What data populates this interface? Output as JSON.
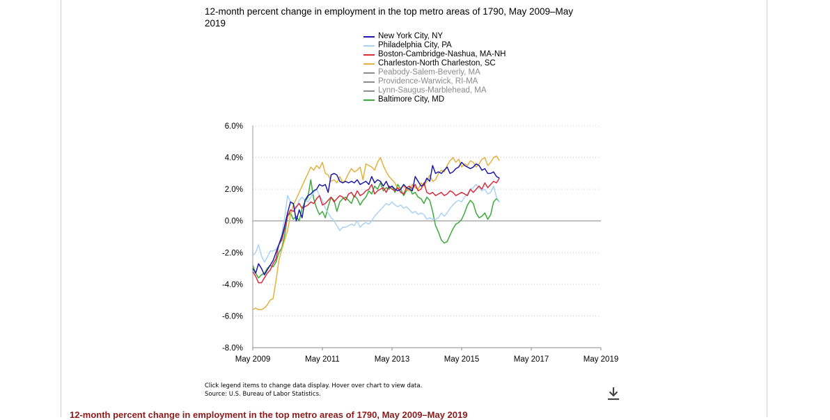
{
  "chart_data": {
    "type": "line",
    "title": "12-month percent change in employment in the top metro areas of 1790, May 2009–May 2019",
    "x_ticks": [
      "May 2009",
      "May 2011",
      "May 2013",
      "May 2015",
      "May 2017",
      "May 2019"
    ],
    "x_range": [
      "2009-05",
      "2019-05"
    ],
    "y_ticks": [
      "6.0%",
      "4.0%",
      "2.0%",
      "0.0%",
      "-2.0%",
      "-4.0%",
      "-6.0%",
      "-8.0%"
    ],
    "ylim": [
      -8,
      6
    ],
    "y_unit": "%",
    "grid": "horizontal dotted",
    "legend_position": "top",
    "series": [
      {
        "name": "New York City, NY",
        "color": "#1a1aa6",
        "start": "2009-05",
        "values": [
          -3.0,
          -3.3,
          -2.7,
          -3.0,
          -3.4,
          -3.1,
          -2.8,
          -2.5,
          -2.0,
          -1.5,
          -1.0,
          -0.3,
          0.5,
          1.2,
          1.1,
          0.0,
          0.7,
          0.2,
          1.3,
          1.6,
          1.7,
          1.9,
          2.0,
          2.3,
          2.2,
          2.3,
          1.8,
          2.9,
          3.0,
          2.9,
          2.5,
          2.4,
          2.5,
          2.4,
          2.5,
          2.4,
          2.6,
          2.3,
          2.4,
          2.5,
          2.3,
          2.8,
          2.4,
          2.6,
          2.5,
          2.2,
          2.5,
          2.1,
          2.2,
          2.0,
          1.9,
          2.0,
          2.3,
          2.1,
          2.0,
          1.9,
          2.8,
          2.5,
          2.2,
          2.3,
          2.7,
          2.5,
          3.5,
          3.0,
          3.1,
          3.0,
          3.2,
          3.4,
          3.0,
          3.1,
          3.3,
          3.4,
          3.7,
          3.5,
          3.4,
          3.3,
          3.4,
          3.6,
          3.5,
          3.2,
          3.3,
          3.0,
          3.0,
          3.1,
          2.8,
          2.7
        ]
      },
      {
        "name": "Philadelphia City, PA",
        "color": "#a9d3f5",
        "start": "2009-05",
        "values": [
          -2.2,
          -2.0,
          -1.5,
          -2.2,
          -2.6,
          -2.3,
          -1.9,
          -1.9,
          -1.8,
          -1.5,
          -0.8,
          0.2,
          1.6,
          1.2,
          1.0,
          0.8,
          1.3,
          1.5,
          1.3,
          1.2,
          1.5,
          1.8,
          2.0,
          1.6,
          1.3,
          0.8,
          0.5,
          0.2,
          0.0,
          -0.3,
          -0.6,
          -0.4,
          -0.4,
          -0.3,
          -0.2,
          -0.3,
          0.0,
          -0.4,
          -0.2,
          -0.1,
          -0.2,
          0.0,
          0.3,
          0.5,
          0.7,
          0.9,
          1.1,
          1.0,
          1.2,
          1.0,
          0.9,
          1.0,
          0.8,
          0.9,
          0.7,
          0.5,
          0.6,
          0.4,
          0.5,
          0.4,
          0.1,
          0.2,
          0.1,
          0.1,
          0.2,
          0.5,
          0.3,
          0.5,
          0.8,
          1.0,
          1.2,
          1.3,
          1.2,
          1.5,
          1.7,
          2.0,
          2.1,
          2.3,
          2.1,
          1.9,
          2.0,
          1.7,
          1.8,
          2.2,
          1.5,
          1.2
        ]
      },
      {
        "name": "Boston-Cambridge-Nashua, MA-NH",
        "color": "#d62c3c",
        "start": "2009-05",
        "values": [
          -3.2,
          -3.5,
          -3.9,
          -3.9,
          -3.6,
          -3.3,
          -3.1,
          -2.7,
          -2.4,
          -1.5,
          -1.2,
          -0.5,
          0.3,
          0.7,
          0.6,
          0.9,
          1.1,
          0.8,
          0.9,
          1.0,
          1.2,
          1.1,
          1.4,
          1.6,
          1.0,
          1.1,
          1.3,
          1.5,
          1.2,
          1.4,
          1.6,
          1.5,
          1.3,
          1.7,
          1.8,
          1.5,
          1.9,
          1.6,
          1.7,
          1.9,
          2.0,
          2.3,
          1.7,
          1.9,
          2.0,
          2.1,
          1.8,
          2.2,
          2.0,
          1.9,
          2.1,
          1.8,
          1.7,
          2.1,
          2.2,
          2.0,
          2.3,
          1.9,
          2.0,
          2.4,
          1.8,
          1.7,
          1.8,
          1.6,
          1.7,
          1.8,
          1.6,
          1.7,
          1.9,
          1.8,
          1.6,
          1.7,
          1.8,
          1.7,
          1.6,
          2.0,
          1.8,
          2.0,
          2.2,
          2.0,
          2.4,
          2.1,
          2.3,
          2.5,
          2.4,
          2.7
        ]
      },
      {
        "name": "Charleston-North Charleston, SC",
        "color": "#e3b23c",
        "start": "2009-05",
        "values": [
          -5.6,
          -5.5,
          -5.6,
          -5.6,
          -5.5,
          -5.3,
          -5.0,
          -4.9,
          -3.8,
          -2.5,
          -1.8,
          -1.2,
          -0.6,
          0.4,
          1.0,
          1.4,
          1.8,
          2.2,
          2.6,
          3.0,
          3.4,
          3.2,
          3.5,
          3.3,
          3.7,
          3.0,
          2.9,
          2.5,
          2.6,
          2.4,
          2.8,
          2.4,
          2.6,
          3.0,
          3.3,
          3.1,
          3.2,
          3.4,
          2.6,
          3.6,
          3.5,
          3.4,
          3.2,
          3.7,
          4.0,
          3.5,
          3.1,
          2.8,
          2.6,
          2.4,
          2.0,
          2.1,
          2.2,
          2.0,
          1.9,
          2.3,
          2.1,
          2.0,
          2.4,
          2.2,
          2.5,
          2.9,
          2.5,
          2.6,
          3.0,
          3.2,
          3.1,
          3.5,
          3.8,
          4.0,
          3.7,
          3.9,
          3.4,
          3.6,
          3.5,
          3.8,
          3.7,
          3.4,
          3.6,
          3.9,
          4.0,
          3.5,
          3.7,
          4.0,
          4.1,
          3.8
        ]
      },
      {
        "name": "Peabody-Salem-Beverly, MA",
        "color": "#8c8c8c",
        "muted": true,
        "start": "2009-05",
        "values": []
      },
      {
        "name": "Providence-Warwick, RI-MA",
        "color": "#8c8c8c",
        "muted": true,
        "start": "2009-05",
        "values": []
      },
      {
        "name": "Lynn-Saugus-Marblehead, MA",
        "color": "#8c8c8c",
        "muted": true,
        "start": "2009-05",
        "values": []
      },
      {
        "name": "Baltimore City, MD",
        "color": "#3aaa3a",
        "start": "2009-05",
        "values": [
          -2.8,
          -3.3,
          -3.6,
          -3.4,
          -3.3,
          -3.0,
          -2.8,
          -2.9,
          -2.6,
          -2.0,
          -1.7,
          -0.9,
          0.3,
          0.5,
          0.1,
          0.3,
          0.0,
          0.8,
          1.2,
          1.5,
          2.6,
          1.4,
          0.8,
          0.4,
          0.6,
          0.2,
          0.9,
          1.5,
          1.3,
          0.6,
          1.2,
          1.4,
          1.5,
          1.3,
          1.1,
          1.6,
          1.4,
          1.0,
          1.3,
          1.5,
          1.9,
          1.7,
          2.2,
          2.0,
          2.4,
          1.9,
          2.1,
          2.0,
          2.2,
          1.8,
          2.3,
          2.0,
          1.6,
          1.9,
          2.1,
          1.7,
          1.8,
          1.5,
          1.4,
          1.1,
          1.5,
          1.3,
          0.6,
          -0.3,
          -0.7,
          -1.2,
          -1.4,
          -1.3,
          -0.9,
          -0.5,
          -0.2,
          -0.1,
          0.1,
          0.5,
          1.0,
          1.3,
          1.1,
          0.5,
          0.2,
          0.3,
          0.5,
          0.1,
          0.4,
          1.2,
          1.4,
          1.2
        ]
      }
    ]
  },
  "footnote": {
    "interaction": "Click legend items to change data display. Hover over chart to view data.",
    "source": "Source: U.S. Bureau of Labor Statistics."
  },
  "icons": {
    "download": "download-icon"
  },
  "section_heading": "12-month percent change in employment in the top metro areas of 1790, May 2009–May 2019"
}
